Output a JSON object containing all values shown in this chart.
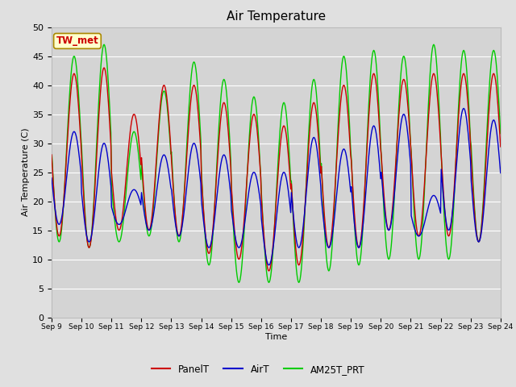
{
  "title": "Air Temperature",
  "xlabel": "Time",
  "ylabel": "Air Temperature (C)",
  "ylim": [
    0,
    50
  ],
  "yticks": [
    0,
    5,
    10,
    15,
    20,
    25,
    30,
    35,
    40,
    45,
    50
  ],
  "background_color": "#e0e0e0",
  "inner_bg_color": "#d4d4d4",
  "legend_labels": [
    "PanelT",
    "AirT",
    "AM25T_PRT"
  ],
  "legend_colors": [
    "#cc0000",
    "#0000cc",
    "#00cc00"
  ],
  "annotation_text": "TW_met",
  "annotation_bg": "#ffffcc",
  "annotation_border": "#aa8800",
  "annotation_text_color": "#cc0000",
  "xtick_labels": [
    "Sep 9",
    "Sep 10",
    "Sep 11",
    "Sep 12",
    "Sep 13",
    "Sep 14",
    "Sep 15",
    "Sep 16",
    "Sep 17",
    "Sep 18",
    "Sep 19",
    "Sep 20",
    "Sep 21",
    "Sep 22",
    "Sep 23",
    "Sep 24"
  ],
  "grid_color": "#ffffff",
  "line_width": 1.0,
  "n_days": 15,
  "pts_per_day": 48,
  "daily_mins_panel": [
    14,
    12,
    15,
    15,
    14,
    11,
    10,
    8,
    9,
    12,
    12,
    15,
    14,
    14,
    13
  ],
  "daily_maxs_panel": [
    42,
    43,
    35,
    40,
    40,
    37,
    35,
    33,
    37,
    40,
    42,
    41,
    42,
    42,
    42
  ],
  "daily_mins_air": [
    16,
    13,
    16,
    15,
    14,
    12,
    12,
    9,
    12,
    12,
    12,
    15,
    14,
    15,
    13
  ],
  "daily_maxs_air": [
    32,
    30,
    22,
    28,
    30,
    28,
    25,
    25,
    31,
    29,
    33,
    35,
    21,
    36,
    34
  ],
  "daily_mins_am25": [
    13,
    12,
    13,
    14,
    13,
    9,
    6,
    6,
    6,
    8,
    9,
    10,
    10,
    10,
    13
  ],
  "daily_maxs_am25": [
    45,
    47,
    32,
    39,
    44,
    41,
    38,
    37,
    41,
    45,
    46,
    45,
    47,
    46,
    46
  ]
}
